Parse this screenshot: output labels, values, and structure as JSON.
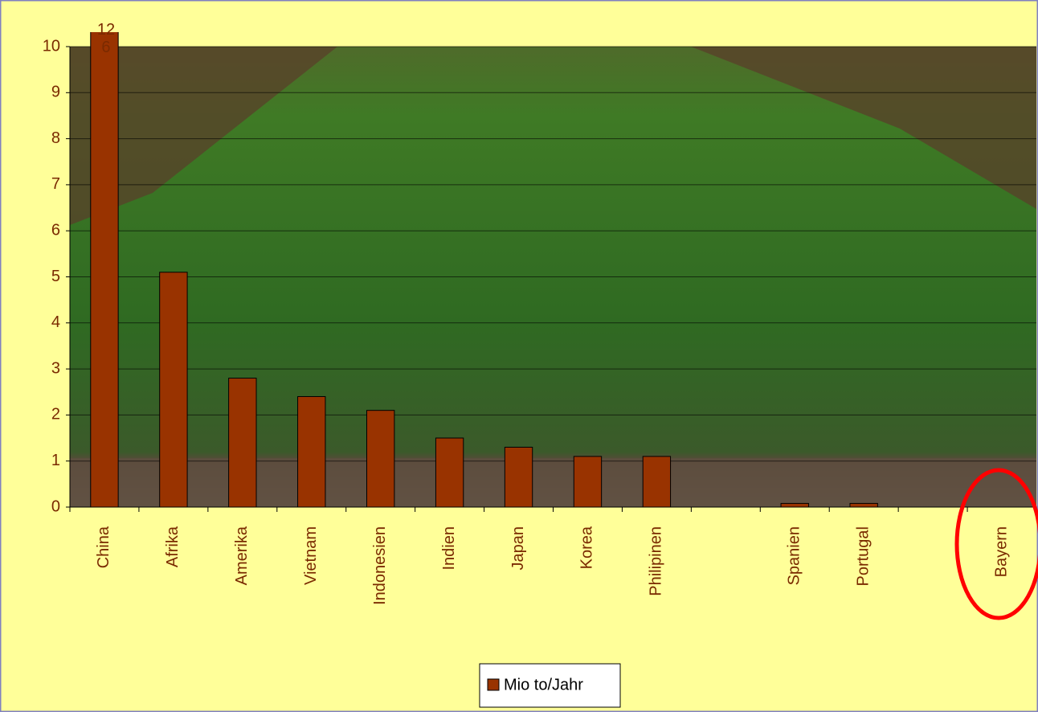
{
  "chart_data": {
    "type": "bar",
    "categories": [
      "China",
      "Afrika",
      "Amerika",
      "Vietnam",
      "Indonesien",
      "Indien",
      "Japan",
      "Korea",
      "Philipinen",
      null,
      "Spanien",
      "Portugal",
      null,
      "Bayern"
    ],
    "series": [
      {
        "name": "Mio to/Jahr",
        "color": "#993300",
        "values": [
          126,
          5.1,
          2.8,
          2.4,
          2.1,
          1.5,
          1.3,
          1.1,
          1.1,
          null,
          0.08,
          0.08,
          null,
          0
        ],
        "value_labels": [
          "126",
          null,
          null,
          null,
          null,
          null,
          null,
          null,
          null,
          null,
          null,
          null,
          null,
          null
        ]
      }
    ],
    "ylim": [
      0,
      10
    ],
    "yticks": [
      0,
      1,
      2,
      3,
      4,
      5,
      6,
      7,
      8,
      9,
      10
    ],
    "grid": true,
    "legend": "bottom"
  }
}
